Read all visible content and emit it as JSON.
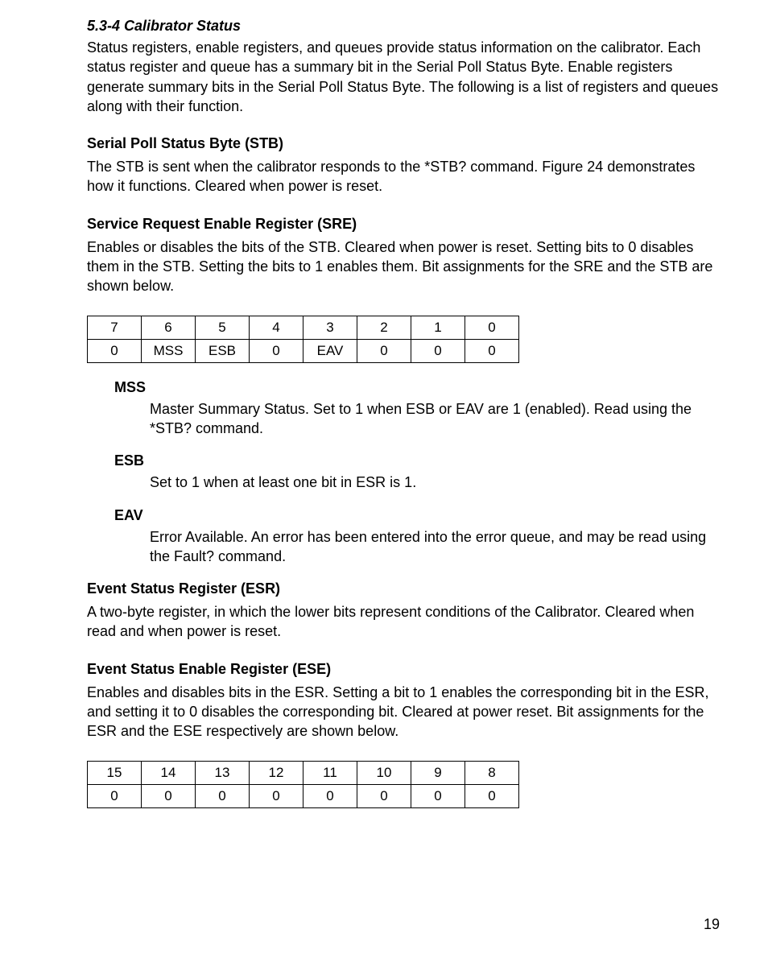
{
  "section_title": "5.3-4 Calibrator Status",
  "intro_para": "Status registers, enable registers, and queues provide status information on the calibrator. Each status register and queue has a summary bit in the Serial Poll Status Byte. Enable registers generate summary bits in the Serial Poll Status Byte. The following is a list of registers and queues along with their function.",
  "stb_heading": "Serial Poll Status Byte (STB)",
  "stb_para": "The STB is sent when the calibrator responds to the *STB? command. Figure 24 demonstrates how it functions. Cleared when power is reset.",
  "sre_heading": "Service Request Enable Register (SRE)",
  "sre_para": "Enables or disables the bits of the STB. Cleared when power is reset. Setting bits to 0 disables them in the STB. Setting the bits to 1 enables them. Bit assignments for the SRE and the STB are shown below.",
  "stb_table": {
    "row1": [
      "7",
      "6",
      "5",
      "4",
      "3",
      "2",
      "1",
      "0"
    ],
    "row2": [
      "0",
      "MSS",
      "ESB",
      "0",
      "EAV",
      "0",
      "0",
      "0"
    ]
  },
  "defs": [
    {
      "term": "MSS",
      "desc": "Master Summary Status. Set to 1 when ESB or EAV are 1 (enabled). Read using the *STB? command."
    },
    {
      "term": "ESB",
      "desc": "Set to 1 when at least one bit in ESR is 1."
    },
    {
      "term": "EAV",
      "desc": "Error Available. An error has been entered into the error queue, and may be read using the Fault? command."
    }
  ],
  "esr_heading": "Event Status Register (ESR)",
  "esr_para": "A two-byte register, in which the lower bits represent conditions of the Calibrator. Cleared when read and when power is reset.",
  "ese_heading": "Event Status Enable Register (ESE)",
  "ese_para": "Enables and disables bits in the ESR. Setting a bit to 1 enables the corresponding bit in the ESR, and setting it to 0 disables the corresponding bit. Cleared at power reset. Bit assignments for the ESR and the ESE respectively are shown below.",
  "ese_table": {
    "row1": [
      "15",
      "14",
      "13",
      "12",
      "11",
      "10",
      "9",
      "8"
    ],
    "row2": [
      "0",
      "0",
      "0",
      "0",
      "0",
      "0",
      "0",
      "0"
    ]
  },
  "page_number": "19"
}
